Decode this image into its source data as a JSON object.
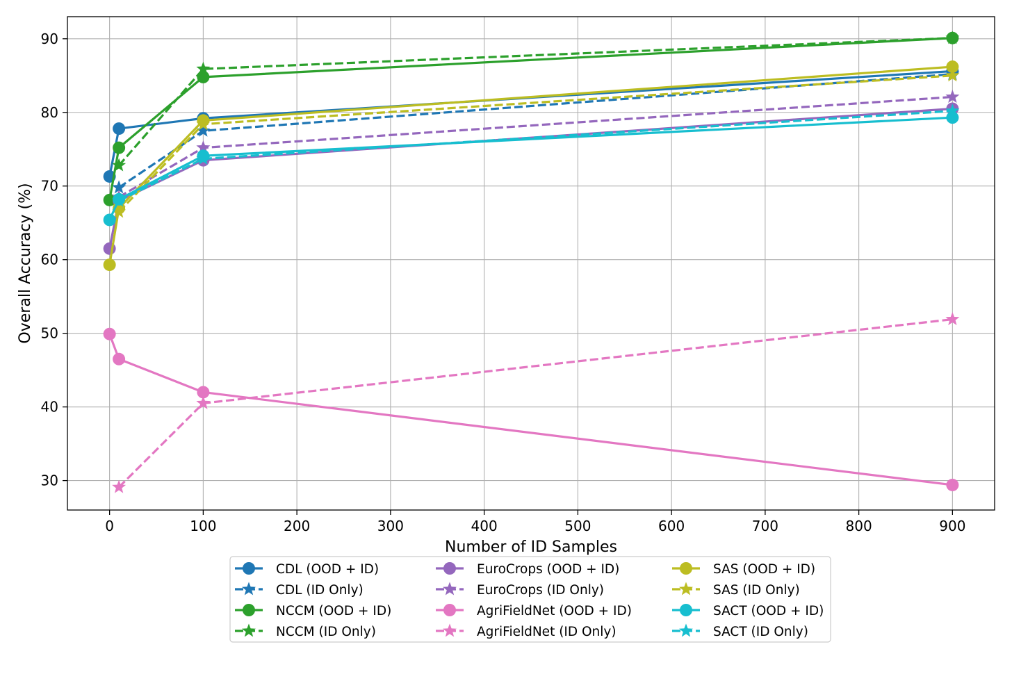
{
  "chart_data": {
    "type": "line",
    "title": "",
    "xlabel": "Number of ID Samples",
    "ylabel": "Overall Accuracy (%)",
    "xlim": [
      -45,
      945
    ],
    "ylim": [
      26,
      93
    ],
    "xticks": [
      0,
      100,
      200,
      300,
      400,
      500,
      600,
      700,
      800,
      900
    ],
    "yticks": [
      30,
      40,
      50,
      60,
      70,
      80,
      90
    ],
    "grid": true,
    "legend_position": "below plot, 3 columns",
    "series": [
      {
        "name": "CDL (OOD + ID)",
        "color": "#1f77b4",
        "style": "solid",
        "marker": "circle",
        "x": [
          0,
          10,
          100,
          900
        ],
        "y": [
          71.3,
          77.8,
          79.2,
          85.6
        ]
      },
      {
        "name": "CDL (ID Only)",
        "color": "#1f77b4",
        "style": "dashed",
        "marker": "star",
        "x": [
          10,
          100,
          900
        ],
        "y": [
          69.8,
          77.5,
          85.2
        ]
      },
      {
        "name": "NCCM (OOD + ID)",
        "color": "#2ca02c",
        "style": "solid",
        "marker": "circle",
        "x": [
          0,
          10,
          100,
          900
        ],
        "y": [
          68.1,
          75.2,
          84.8,
          90.1
        ]
      },
      {
        "name": "NCCM (ID Only)",
        "color": "#2ca02c",
        "style": "dashed",
        "marker": "star",
        "x": [
          10,
          100,
          900
        ],
        "y": [
          72.8,
          85.9,
          90.1
        ]
      },
      {
        "name": "EuroCrops (OOD + ID)",
        "color": "#9467bd",
        "style": "solid",
        "marker": "circle",
        "x": [
          0,
          10,
          100,
          900
        ],
        "y": [
          61.5,
          68.0,
          73.5,
          80.5
        ]
      },
      {
        "name": "EuroCrops (ID Only)",
        "color": "#9467bd",
        "style": "dashed",
        "marker": "star",
        "x": [
          10,
          100,
          900
        ],
        "y": [
          68.5,
          75.2,
          82.1
        ]
      },
      {
        "name": "AgriFieldNet (OOD + ID)",
        "color": "#e377c2",
        "style": "solid",
        "marker": "circle",
        "x": [
          0,
          10,
          100,
          900
        ],
        "y": [
          49.9,
          46.5,
          42.0,
          29.4
        ]
      },
      {
        "name": "AgriFieldNet (ID Only)",
        "color": "#e377c2",
        "style": "dashed",
        "marker": "star",
        "x": [
          10,
          100,
          900
        ],
        "y": [
          29.1,
          40.5,
          51.9
        ]
      },
      {
        "name": "SAS (OOD + ID)",
        "color": "#bcbd22",
        "style": "solid",
        "marker": "circle",
        "x": [
          0,
          10,
          100,
          900
        ],
        "y": [
          59.3,
          67.0,
          78.9,
          86.2
        ]
      },
      {
        "name": "SAS (ID Only)",
        "color": "#bcbd22",
        "style": "dashed",
        "marker": "star",
        "x": [
          10,
          100,
          900
        ],
        "y": [
          66.5,
          78.4,
          85.0
        ]
      },
      {
        "name": "SACT (OOD + ID)",
        "color": "#17becf",
        "style": "solid",
        "marker": "circle",
        "x": [
          0,
          10,
          100,
          900
        ],
        "y": [
          65.4,
          68.2,
          74.1,
          79.3
        ]
      },
      {
        "name": "SACT (ID Only)",
        "color": "#17becf",
        "style": "dashed",
        "marker": "star",
        "x": [
          10,
          100,
          900
        ],
        "y": [
          68.0,
          73.7,
          80.2
        ]
      }
    ]
  }
}
